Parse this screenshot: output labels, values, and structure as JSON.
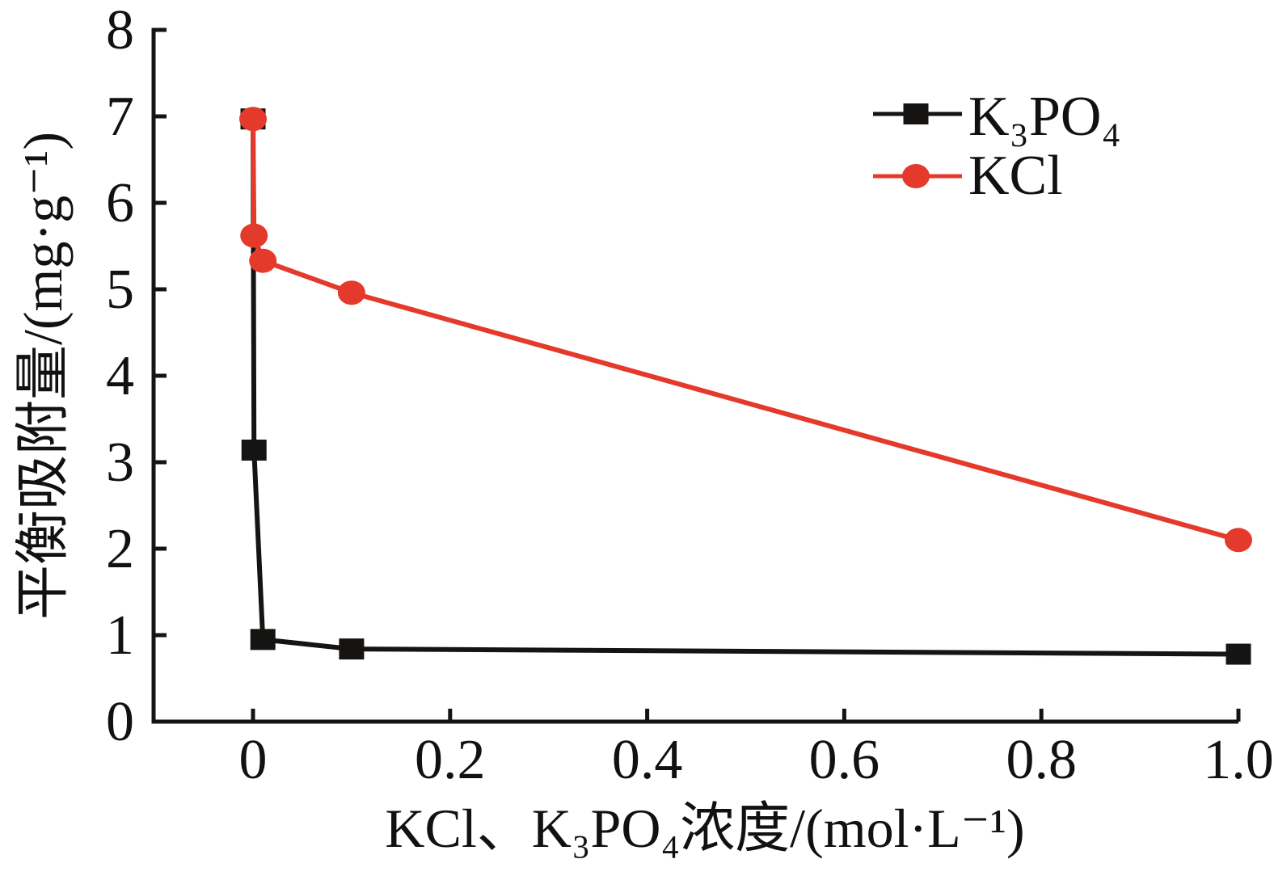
{
  "chart_data": {
    "type": "line",
    "title": "",
    "xlabel": "KCl、K₃PO₄浓度/(mol·L⁻¹)",
    "ylabel": "平衡吸附量/(mg·g⁻¹)",
    "xlim": [
      -0.1,
      1.0
    ],
    "ylim": [
      0,
      8
    ],
    "grid": false,
    "legend_position": "upper-right-inside",
    "xticks": [
      0,
      0.2,
      0.4,
      0.6,
      0.8,
      1.0
    ],
    "xtick_labels": [
      "0",
      "0.2",
      "0.4",
      "0.6",
      "0.8",
      "1.0"
    ],
    "yticks": [
      0,
      1,
      2,
      3,
      4,
      5,
      6,
      7,
      8
    ],
    "ytick_labels": [
      "0",
      "1",
      "2",
      "3",
      "4",
      "5",
      "6",
      "7",
      "8"
    ],
    "x": [
      0,
      0.001,
      0.01,
      0.1,
      1.0
    ],
    "series": [
      {
        "name": "K₃PO₄",
        "marker": "square",
        "color": "#161412",
        "values": [
          6.97,
          3.14,
          0.95,
          0.84,
          0.78
        ]
      },
      {
        "name": "KCl",
        "marker": "circle",
        "color": "#e43a2c",
        "values": [
          6.97,
          5.62,
          5.33,
          4.96,
          2.1
        ]
      }
    ]
  },
  "colors": {
    "axis": "#161412",
    "text": "#111111",
    "background": "#ffffff"
  }
}
